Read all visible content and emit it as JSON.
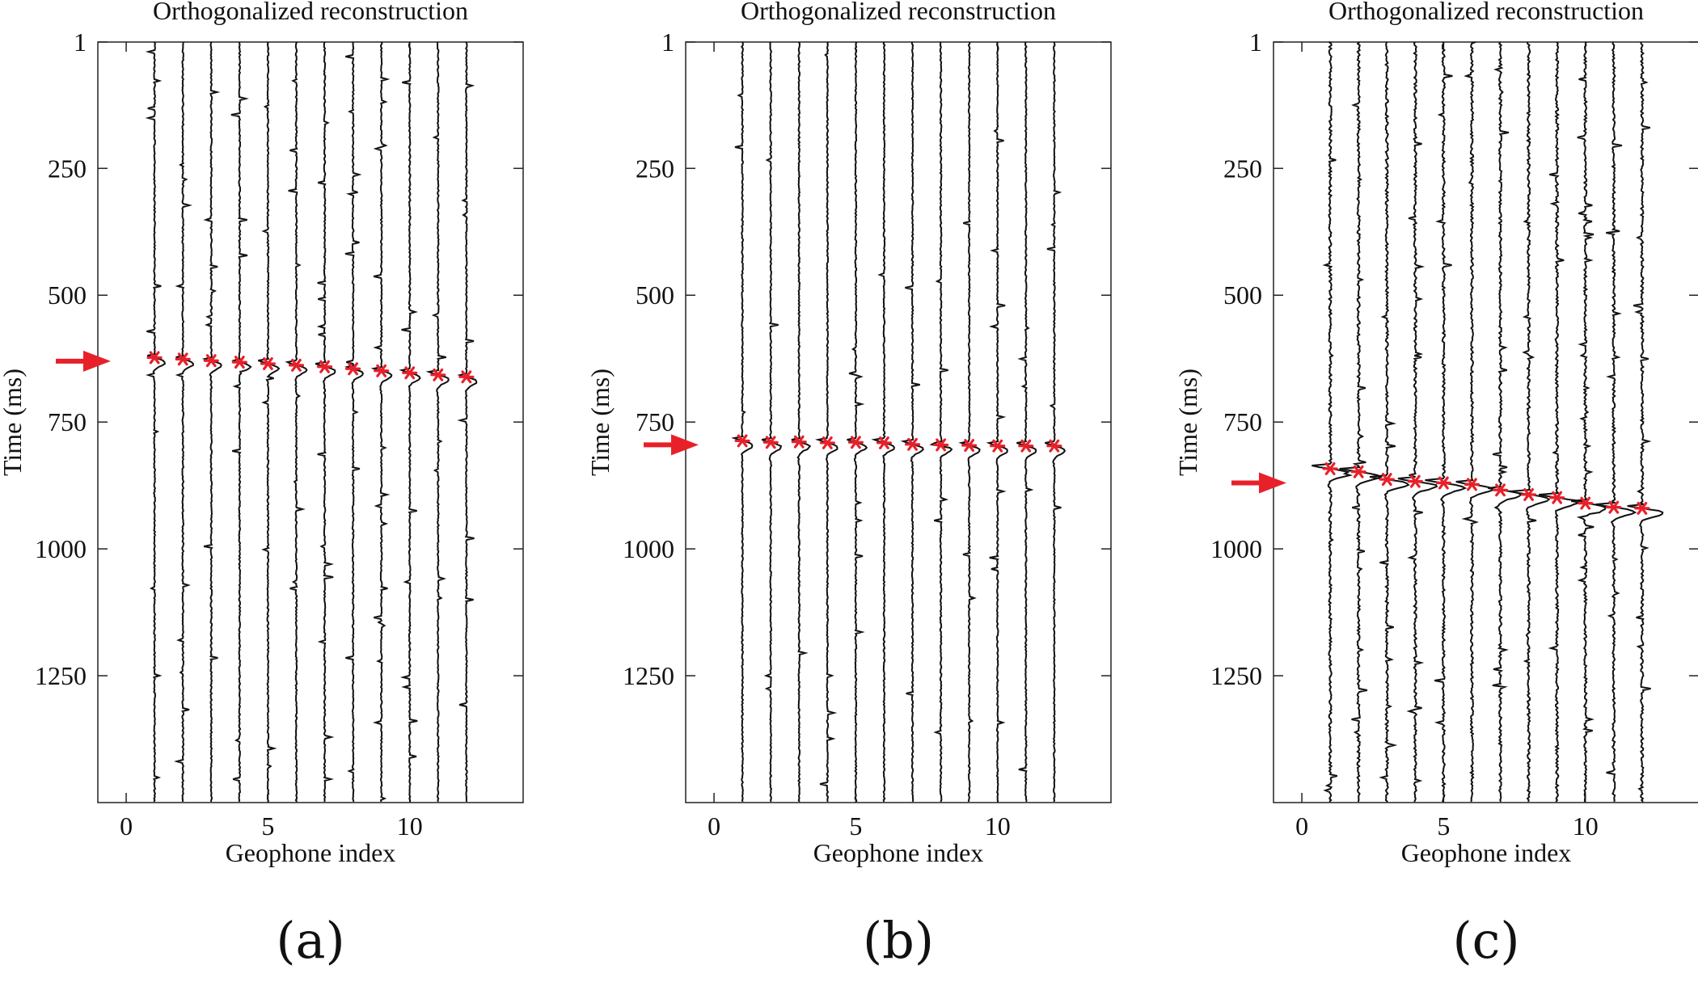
{
  "figure": {
    "panel_captions": [
      "(a)",
      "(b)",
      "(c)"
    ]
  },
  "chart_data": [
    {
      "type": "line",
      "title": "Orthogonalized reconstruction",
      "xlabel": "Geophone index",
      "ylabel": "Time (ms)",
      "xlim": [
        -1,
        14
      ],
      "ylim": [
        1,
        1500
      ],
      "y_inverted": true,
      "x_ticks": [
        0,
        5,
        10
      ],
      "y_ticks": [
        1,
        250,
        500,
        750,
        1000,
        1250
      ],
      "grid": false,
      "traces_per_panel": 12,
      "arrow_time": 630,
      "series": [
        {
          "name": "",
          "x": [
            1,
            2,
            3,
            4,
            5,
            6,
            7,
            8,
            9,
            10,
            11,
            12
          ],
          "y": [
            623,
            626,
            629,
            632,
            635,
            638,
            641,
            645,
            649,
            653,
            657,
            661
          ]
        }
      ]
    },
    {
      "type": "line",
      "title": "Orthogonalized reconstruction",
      "xlabel": "Geophone index",
      "ylabel": "Time (ms)",
      "xlim": [
        -1,
        14
      ],
      "ylim": [
        1,
        1500
      ],
      "y_inverted": true,
      "x_ticks": [
        0,
        5,
        10
      ],
      "y_ticks": [
        1,
        250,
        500,
        750,
        1000,
        1250
      ],
      "grid": false,
      "traces_per_panel": 12,
      "arrow_time": 795,
      "series": [
        {
          "name": "",
          "x": [
            1,
            2,
            3,
            4,
            5,
            6,
            7,
            8,
            9,
            10,
            11,
            12
          ],
          "y": [
            787,
            790,
            789,
            791,
            790,
            791,
            794,
            795,
            796,
            797,
            797,
            797
          ]
        }
      ]
    },
    {
      "type": "line",
      "title": "Orthogonalized reconstruction",
      "xlabel": "Geophone index",
      "ylabel": "Time (ms)",
      "xlim": [
        -1,
        14
      ],
      "ylim": [
        1,
        1500
      ],
      "y_inverted": true,
      "x_ticks": [
        0,
        5,
        10
      ],
      "y_ticks": [
        1,
        250,
        500,
        750,
        1000,
        1250
      ],
      "grid": false,
      "traces_per_panel": 12,
      "arrow_time": 870,
      "series": [
        {
          "name": "",
          "x": [
            1,
            2,
            3,
            4,
            5,
            6,
            7,
            8,
            9,
            10,
            11,
            12
          ],
          "y": [
            842,
            848,
            863,
            867,
            870,
            873,
            884,
            893,
            899,
            910,
            918,
            920
          ]
        }
      ]
    }
  ]
}
